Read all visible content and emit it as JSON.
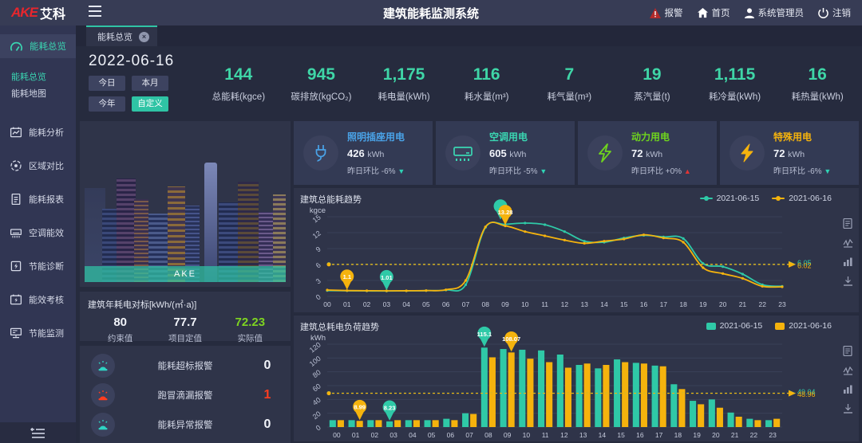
{
  "header": {
    "logo_ake": "AKE",
    "logo_cn": "艾科",
    "title": "建筑能耗监测系统",
    "alarm": "报警",
    "home": "首页",
    "user": "系统管理员",
    "logout": "注销"
  },
  "sidebar": {
    "root": {
      "label": "能耗总览"
    },
    "submenu": [
      {
        "label": "能耗总览"
      },
      {
        "label": "能耗地图"
      }
    ],
    "items": [
      {
        "label": "能耗分析"
      },
      {
        "label": "区域对比"
      },
      {
        "label": "能耗报表"
      },
      {
        "label": "空调能效"
      },
      {
        "label": "节能诊断"
      },
      {
        "label": "能效考核"
      },
      {
        "label": "节能监测"
      }
    ]
  },
  "tabbar": {
    "tab": "能耗总览",
    "close": "×"
  },
  "filters": {
    "date": "2022-06-16",
    "today": "今日",
    "month": "本月",
    "year": "今年",
    "custom": "自定义"
  },
  "kpis": [
    {
      "value": "144",
      "label": "总能耗(kgce)"
    },
    {
      "value": "945",
      "label": "碳排放(kgCO₂)"
    },
    {
      "value": "1,175",
      "label": "耗电量(kWh)"
    },
    {
      "value": "116",
      "label": "耗水量(m³)"
    },
    {
      "value": "7",
      "label": "耗气量(m³)"
    },
    {
      "value": "19",
      "label": "蒸汽量(t)"
    },
    {
      "value": "1,115",
      "label": "耗冷量(kWh)"
    },
    {
      "value": "16",
      "label": "耗热量(kWh)"
    }
  ],
  "building_image": {
    "watermark": "AKE"
  },
  "benchmark": {
    "title": "建筑年耗电对标[kWh/(㎡·a)]",
    "items": [
      {
        "value": "80",
        "label": "约束值",
        "color": "#f2f4fa"
      },
      {
        "value": "77.7",
        "label": "项目定值",
        "color": "#f2f4fa"
      },
      {
        "value": "72.23",
        "label": "实际值",
        "color": "#7ed421"
      }
    ]
  },
  "alarms": {
    "items": [
      {
        "label": "能耗超标报警",
        "count": "0",
        "icon_color": "#2fd3c3",
        "count_color": "#f2f4fa"
      },
      {
        "label": "跑冒滴漏报警",
        "count": "1",
        "icon_color": "#ff3d1f",
        "count_color": "#ff3d1f"
      },
      {
        "label": "能耗异常报警",
        "count": "0",
        "icon_color": "#2fd3c3",
        "count_color": "#f2f4fa"
      }
    ]
  },
  "usage_cards": [
    {
      "title": "照明插座用电",
      "value": "426",
      "unit": "kWh",
      "compare_label": "昨日环比",
      "delta": "-6%",
      "arrow": "▼",
      "arrow_color": "#2fd3b5",
      "accent": "#4aa3e8"
    },
    {
      "title": "空调用电",
      "value": "605",
      "unit": "kWh",
      "compare_label": "昨日环比",
      "delta": "-5%",
      "arrow": "▼",
      "arrow_color": "#2fd3b5",
      "accent": "#3ad6b2"
    },
    {
      "title": "动力用电",
      "value": "72",
      "unit": "kWh",
      "compare_label": "昨日环比",
      "delta": "+0%",
      "arrow": "▲",
      "arrow_color": "#e03434",
      "accent": "#6fd41e"
    },
    {
      "title": "特殊用电",
      "value": "72",
      "unit": "kWh",
      "compare_label": "昨日环比",
      "delta": "-6%",
      "arrow": "▼",
      "arrow_color": "#2fd3b5",
      "accent": "#f5b30d"
    }
  ],
  "chart_data": [
    {
      "type": "line",
      "title": "建筑总能耗趋势",
      "ylabel": "kgce",
      "ylim": [
        0,
        15
      ],
      "yticks": [
        0,
        3,
        6,
        9,
        12,
        15
      ],
      "grid": true,
      "legend_position": "top-right",
      "x": [
        "00",
        "01",
        "02",
        "03",
        "04",
        "05",
        "06",
        "07",
        "08",
        "09",
        "10",
        "11",
        "12",
        "13",
        "14",
        "15",
        "16",
        "17",
        "18",
        "19",
        "20",
        "21",
        "22",
        "23"
      ],
      "series": [
        {
          "name": "2021-06-15",
          "color": "#2fc9a7",
          "avg": 6.05,
          "avg_label": "6.05",
          "values": [
            1.1,
            1.06,
            1.03,
            1.01,
            1.04,
            1.08,
            1.2,
            2.2,
            13.0,
            13.55,
            13.8,
            13.5,
            12.2,
            10.4,
            10.2,
            11.0,
            11.5,
            11.2,
            10.9,
            6.2,
            5.6,
            4.2,
            2.2,
            1.9
          ]
        },
        {
          "name": "2021-06-16",
          "color": "#f5b30d",
          "avg": 6.02,
          "avg_label": "6.02",
          "values": [
            1.2,
            1.1,
            1.07,
            1.05,
            1.06,
            1.1,
            1.25,
            3.0,
            13.1,
            13.28,
            12.2,
            11.4,
            10.6,
            10.0,
            10.4,
            10.8,
            11.6,
            11.0,
            10.2,
            5.4,
            4.3,
            3.4,
            1.9,
            1.8
          ]
        }
      ],
      "markers": [
        {
          "series": 0,
          "x": 9,
          "value": 13.55,
          "label": "",
          "dx": -6,
          "dy": -5
        },
        {
          "series": 1,
          "x": 9,
          "value": 13.28,
          "label": "13.28"
        },
        {
          "series": 1,
          "x": 1,
          "value": 1.1,
          "label": "1.1"
        },
        {
          "series": 0,
          "x": 3,
          "value": 1.01,
          "label": "1.01"
        }
      ]
    },
    {
      "type": "bar",
      "title": "建筑总耗电负荷趋势",
      "ylabel": "kWh",
      "ylim": [
        0,
        120
      ],
      "yticks": [
        0,
        20,
        40,
        60,
        80,
        100,
        120
      ],
      "grid": true,
      "legend_position": "top-right",
      "x": [
        "00",
        "01",
        "02",
        "03",
        "04",
        "05",
        "06",
        "07",
        "08",
        "09",
        "10",
        "11",
        "12",
        "13",
        "14",
        "15",
        "16",
        "17",
        "18",
        "19",
        "20",
        "21",
        "22",
        "23"
      ],
      "series": [
        {
          "name": "2021-06-15",
          "color": "#2fc9a7",
          "avg": 49.04,
          "avg_label": "49.04",
          "values": [
            10,
            10,
            10,
            8.23,
            10,
            10,
            12,
            20,
            115.1,
            113,
            112,
            111,
            105,
            90,
            85,
            98,
            93,
            89,
            62,
            38,
            40,
            21,
            12,
            10
          ]
        },
        {
          "name": "2021-06-16",
          "color": "#f5b30d",
          "avg": 48.96,
          "avg_label": "48.96",
          "values": [
            10,
            8.99,
            10,
            10,
            10,
            10,
            10,
            19,
            101,
            108.07,
            99,
            94,
            86,
            92,
            90,
            94,
            92,
            88,
            55,
            33,
            28,
            15,
            10,
            12
          ]
        }
      ],
      "markers": [
        {
          "series": 0,
          "x": 8,
          "value": 115.1,
          "label": "115.1"
        },
        {
          "series": 1,
          "x": 9,
          "value": 108.07,
          "label": "108.07"
        },
        {
          "series": 1,
          "x": 1,
          "value": 8.99,
          "label": "8.99"
        },
        {
          "series": 0,
          "x": 3,
          "value": 8.23,
          "label": "8.23"
        }
      ]
    }
  ],
  "toolbox_icons": [
    "data-view-icon",
    "line-chart-icon",
    "bar-chart-icon",
    "download-icon"
  ],
  "colors": {
    "teal": "#2fc9a7",
    "yellow": "#f5b30d",
    "blue": "#4aa3e8",
    "green": "#6fd41e",
    "red": "#e03434",
    "kpi_value": "#3fd6a7"
  }
}
